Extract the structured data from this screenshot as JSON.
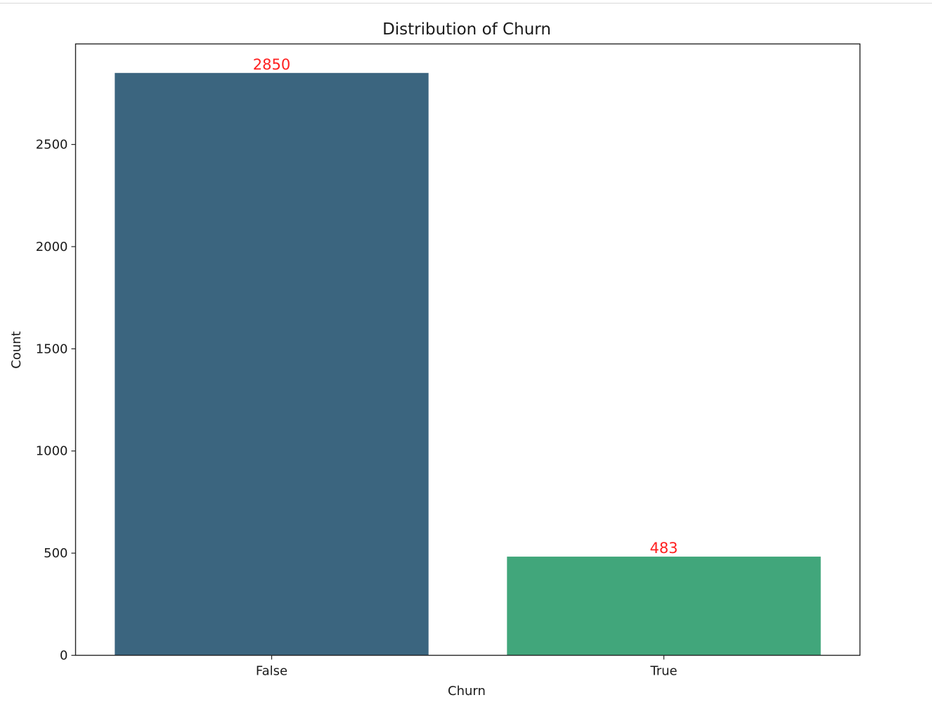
{
  "chart_data": {
    "type": "bar",
    "title": "Distribution of Churn",
    "xlabel": "Churn",
    "ylabel": "Count",
    "categories": [
      "False",
      "True"
    ],
    "values": [
      2850,
      483
    ],
    "data_labels": [
      "2850",
      "483"
    ],
    "bar_colors": [
      "#3b657f",
      "#41a67b"
    ],
    "data_label_color": "#ff2020",
    "ylim": [
      0,
      2992
    ],
    "yticks": [
      0,
      500,
      1000,
      1500,
      2000,
      2500
    ],
    "ytick_labels": [
      "0",
      "500",
      "1000",
      "1500",
      "2000",
      "2500"
    ],
    "grid": false,
    "legend": "none"
  }
}
